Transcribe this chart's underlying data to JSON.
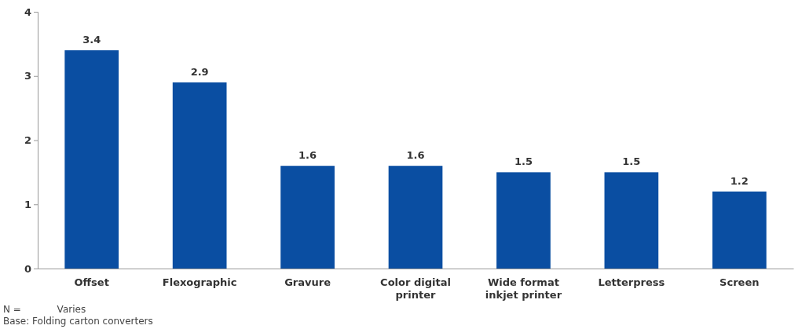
{
  "chart_data": {
    "type": "bar",
    "categories": [
      "Offset",
      "Flexographic",
      "Gravure",
      "Color digital printer",
      "Wide format inkjet printer",
      "Letterpress",
      "Screen"
    ],
    "values": [
      3.4,
      2.9,
      1.6,
      1.6,
      1.5,
      1.5,
      1.2
    ],
    "color": "#0a4ea2",
    "ylim": [
      0,
      4
    ],
    "yticks": [
      0,
      1,
      2,
      3,
      4
    ],
    "grid": false,
    "data_labels": true,
    "annotations": [
      "N =            Varies",
      "Base: Folding carton converters"
    ]
  }
}
